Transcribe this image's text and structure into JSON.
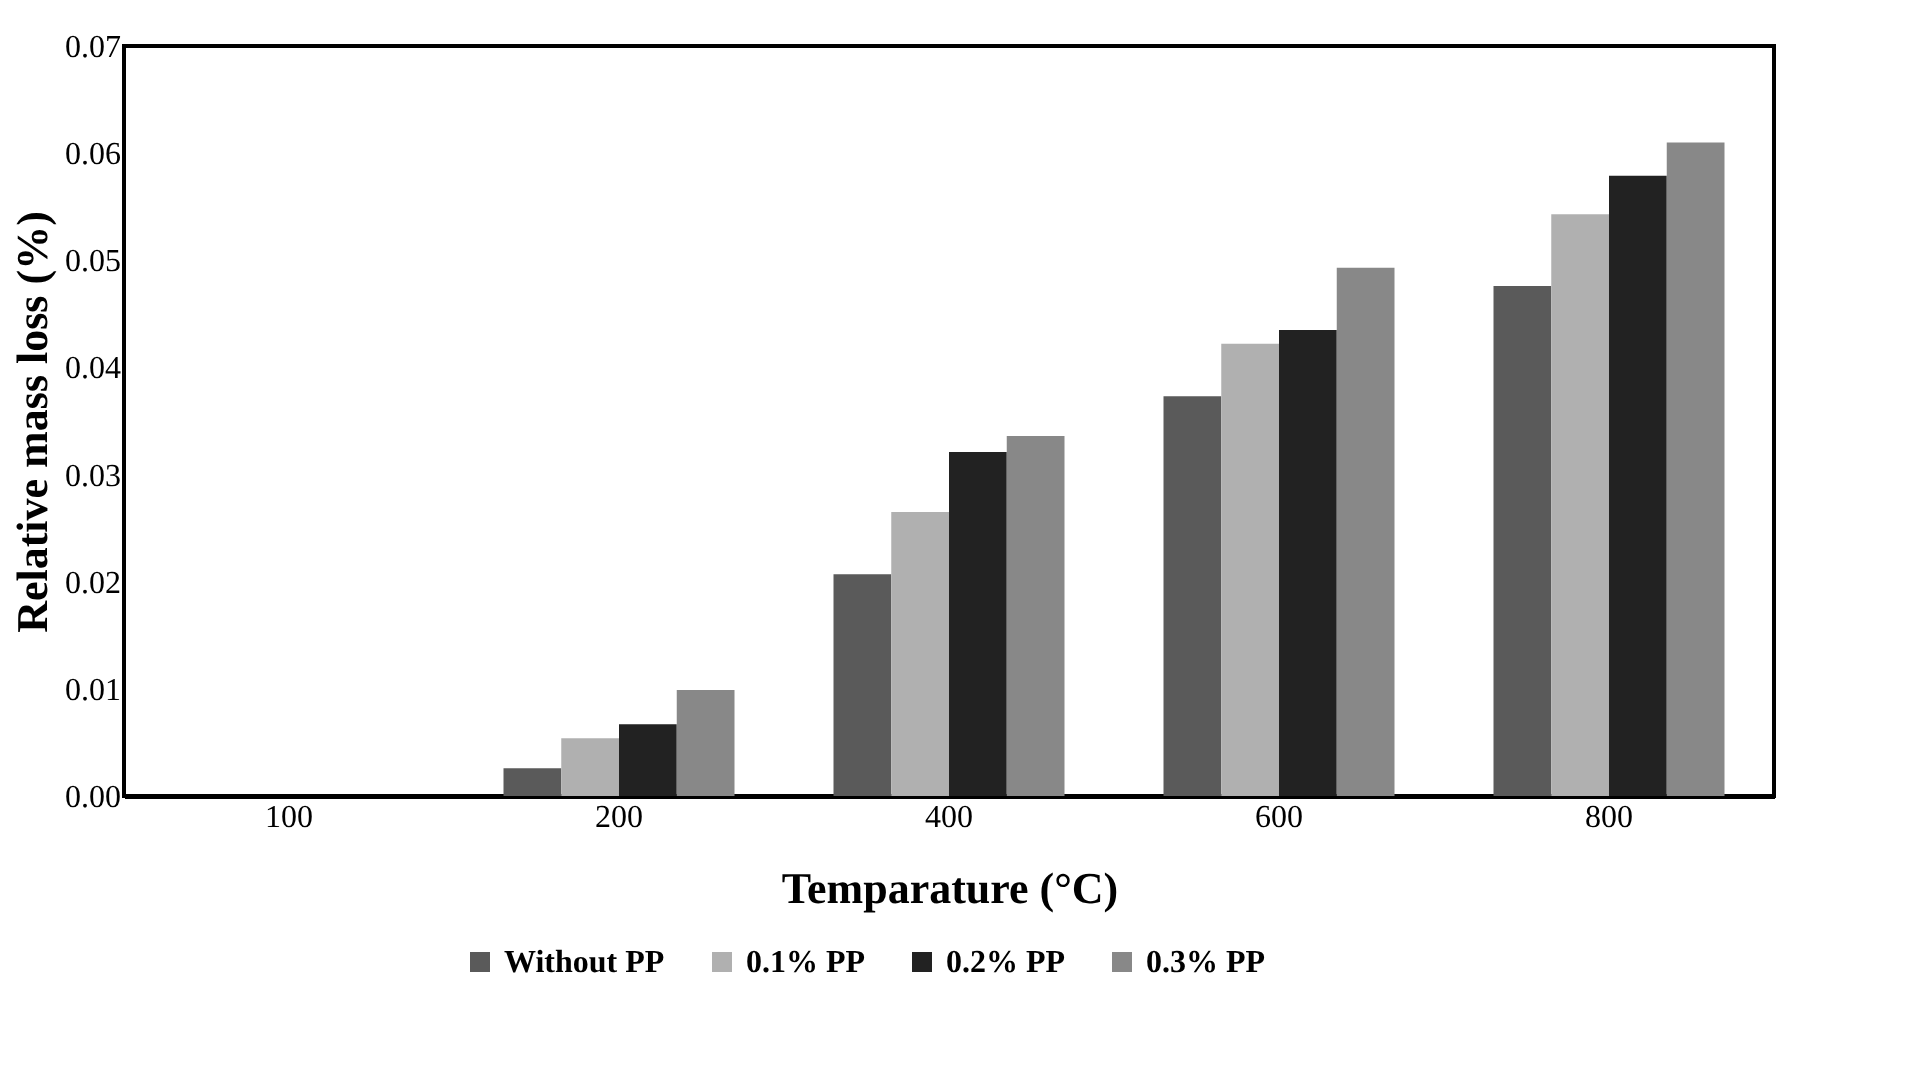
{
  "chart_data": {
    "type": "bar",
    "xlabel": "Temparature (°C)",
    "ylabel": "Relative mass loss (%)",
    "categories": [
      "100",
      "200",
      "400",
      "600",
      "800"
    ],
    "ylim": [
      0,
      0.07
    ],
    "yticks": [
      {
        "value": 0,
        "label": "0.00"
      },
      {
        "value": 0.01,
        "label": "0.01"
      },
      {
        "value": 0.02,
        "label": "0.02"
      },
      {
        "value": 0.03,
        "label": "0.03"
      },
      {
        "value": 0.04,
        "label": "0.04"
      },
      {
        "value": 0.05,
        "label": "0.05"
      },
      {
        "value": 0.06,
        "label": "0.06"
      },
      {
        "value": 0.07,
        "label": "0.07"
      }
    ],
    "grid": false,
    "legend": "bottom",
    "series": [
      {
        "name": "Without PP",
        "color": "#5a5a5a",
        "values": [
          0,
          0.0026,
          0.0207,
          0.0373,
          0.0476
        ]
      },
      {
        "name": "0.1% PP",
        "color": "#b0b0b0",
        "values": [
          null,
          0.0054,
          0.0265,
          0.0422,
          0.0543
        ]
      },
      {
        "name": "0.2% PP",
        "color": "#222222",
        "values": [
          0,
          0.0067,
          0.0321,
          0.0435,
          0.0579
        ]
      },
      {
        "name": "0.3% PP",
        "color": "#888888",
        "values": [
          0,
          0.0099,
          0.0336,
          0.0493,
          0.061
        ]
      }
    ]
  }
}
